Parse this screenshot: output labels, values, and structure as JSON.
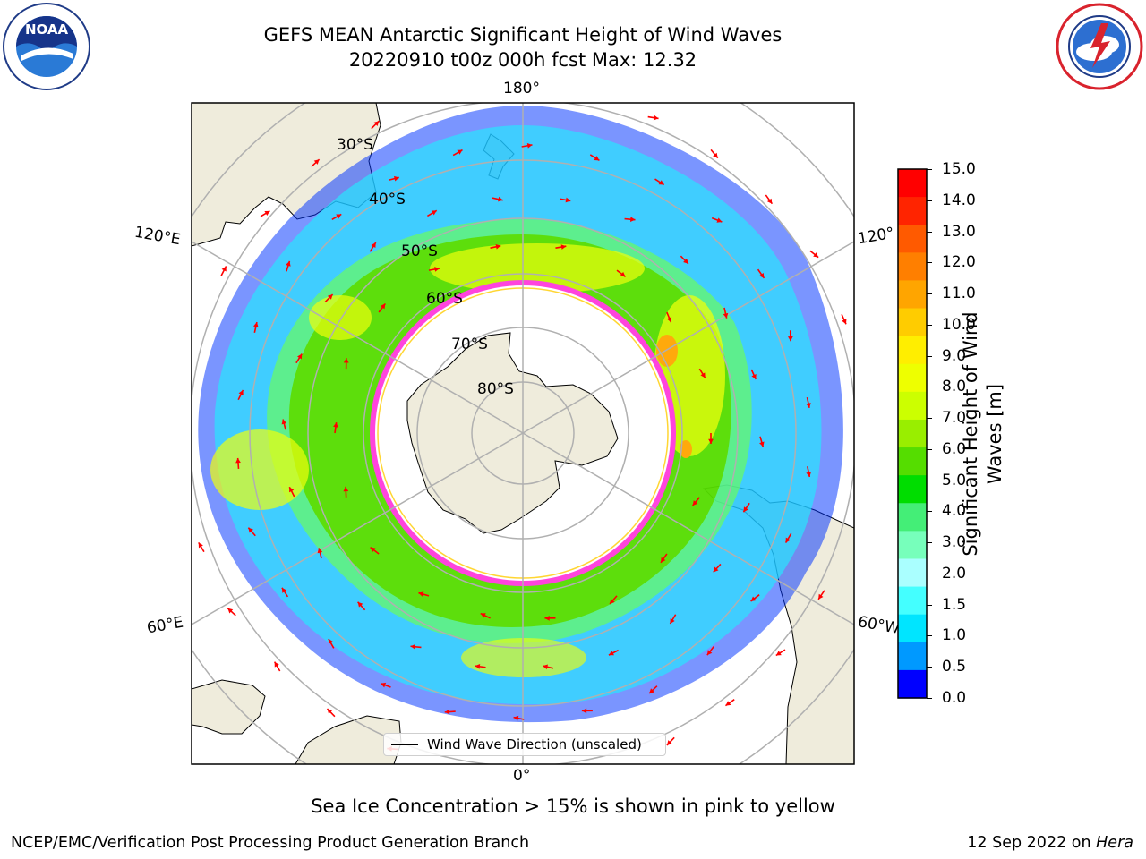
{
  "title": {
    "line1": "GEFS MEAN Antarctic Significant Height of Wind Waves",
    "line2": "20220910 t00z 000h fcst   Max: 12.32"
  },
  "logos": {
    "left": {
      "name": "NOAA",
      "text": "NOAA",
      "ring_text": "NATIONAL OCEANIC AND ATMOSPHERIC ADMINISTRATION · U.S. DEPARTMENT OF COMMERCE"
    },
    "right": {
      "name": "National Weather Service",
      "ring_text": "NATIONAL WEATHER SERVICE"
    }
  },
  "map": {
    "projection": "south polar stereographic",
    "longitude_labels": [
      "180°",
      "120°E",
      "120°",
      "60°E",
      "60°W",
      "0°"
    ],
    "latitude_labels": [
      "30°S",
      "40°S",
      "50°S",
      "60°S",
      "70°S",
      "80°S"
    ],
    "legend_text": "Wind Wave Direction (unscaled)",
    "arrow_color": "#ff0000",
    "sea_ice_color": "#ff44dd",
    "land_color": "#efecdc"
  },
  "colorbar": {
    "label": "Significant Height of Wind Waves [m]",
    "label_line1": "Significant Height of Wind",
    "label_line2": "Waves [m]",
    "ticks": [
      "15.0",
      "14.0",
      "13.0",
      "12.0",
      "11.0",
      "10.0",
      "9.0",
      "8.0",
      "7.0",
      "6.0",
      "5.0",
      "4.0",
      "3.0",
      "2.0",
      "1.5",
      "1.0",
      "0.5",
      "0.0"
    ],
    "colors": [
      "#ff0000",
      "#ff2400",
      "#ff5a00",
      "#ff7f00",
      "#ffa500",
      "#ffcc00",
      "#ffee00",
      "#eeff00",
      "#ccff00",
      "#99ee00",
      "#55dd00",
      "#00dd00",
      "#44ee77",
      "#77ffbb",
      "#aaffff",
      "#44ffff",
      "#00e5ff",
      "#0099ff",
      "#0000ff"
    ]
  },
  "chart_data": {
    "type": "heatmap",
    "title": "GEFS MEAN Antarctic Significant Height of Wind Waves",
    "subtitle": "20220910 t00z 000h fcst   Max: 12.32",
    "max": 12.32,
    "colorbar_label": "Significant Height of Wind Waves [m]",
    "levels": [
      0.0,
      0.5,
      1.0,
      1.5,
      2.0,
      3.0,
      4.0,
      5.0,
      6.0,
      7.0,
      8.0,
      9.0,
      10.0,
      11.0,
      12.0,
      13.0,
      14.0,
      15.0
    ],
    "legend": [
      "Wind Wave Direction (unscaled)"
    ],
    "grid": true
  },
  "caption": "Sea Ice Concentration > 15% is shown in pink to yellow",
  "footer": {
    "left": "NCEP/EMC/Verification Post Processing Product Generation Branch",
    "right_date": "12 Sep 2022 on ",
    "right_machine": "Hera"
  }
}
